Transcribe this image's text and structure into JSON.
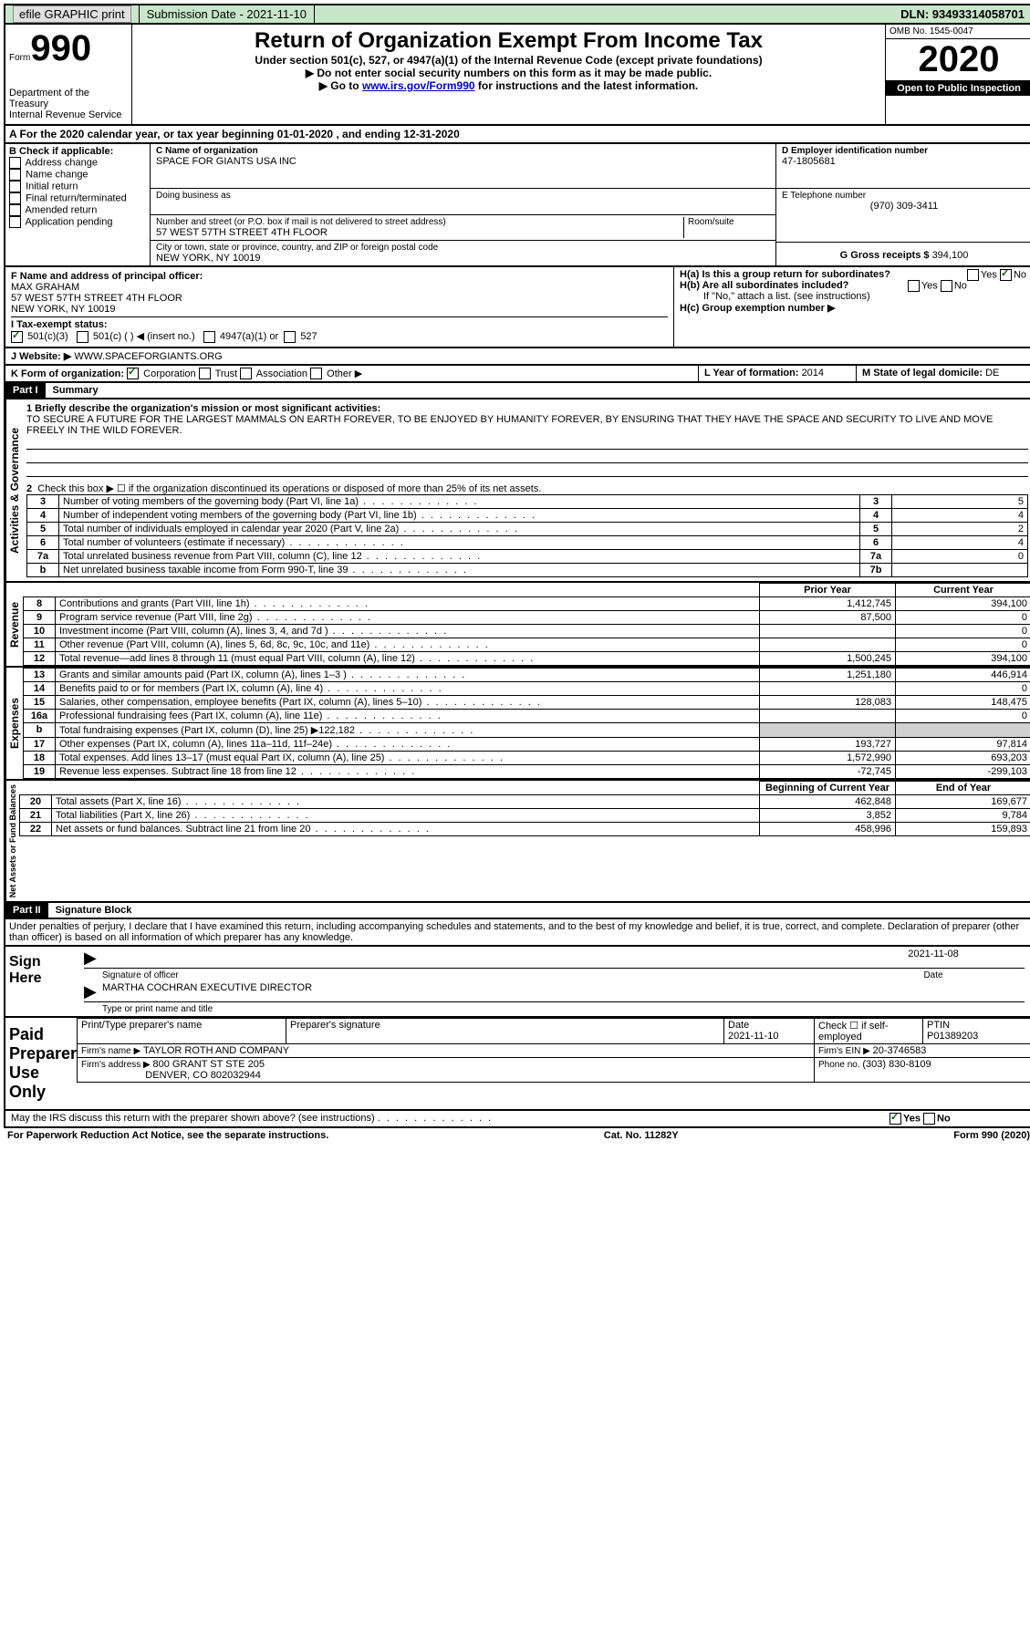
{
  "top": {
    "efile": "efile GRAPHIC print",
    "sub_label": "Submission Date - ",
    "sub_date": "2021-11-10",
    "dln": "DLN: 93493314058701"
  },
  "hdr": {
    "form_prefix": "Form",
    "form_no": "990",
    "dept1": "Department of the Treasury",
    "dept2": "Internal Revenue Service",
    "title": "Return of Organization Exempt From Income Tax",
    "sub1": "Under section 501(c), 527, or 4947(a)(1) of the Internal Revenue Code (except private foundations)",
    "sub2": "▶ Do not enter social security numbers on this form as it may be made public.",
    "sub3a": "▶ Go to ",
    "sub3_link": "www.irs.gov/Form990",
    "sub3b": " for instructions and the latest information.",
    "omb": "OMB No. 1545-0047",
    "year": "2020",
    "inspection": "Open to Public Inspection"
  },
  "a": {
    "line": "A For the 2020 calendar year, or tax year beginning 01-01-2020   , and ending 12-31-2020"
  },
  "b": {
    "label": "B Check if applicable:",
    "c1": "Address change",
    "c2": "Name change",
    "c3": "Initial return",
    "c4": "Final return/terminated",
    "c5": "Amended return",
    "c6": "Application pending"
  },
  "c": {
    "name_label": "C Name of organization",
    "name": "SPACE FOR GIANTS USA INC",
    "dba_label": "Doing business as",
    "addr_label": "Number and street (or P.O. box if mail is not delivered to street address)",
    "room_label": "Room/suite",
    "addr": "57 WEST 57TH STREET 4TH FLOOR",
    "city_label": "City or town, state or province, country, and ZIP or foreign postal code",
    "city": "NEW YORK, NY  10019"
  },
  "d": {
    "label": "D Employer identification number",
    "value": "47-1805681"
  },
  "e": {
    "label": "E Telephone number",
    "value": "(970) 309-3411"
  },
  "g": {
    "label": "G Gross receipts $ ",
    "value": "394,100"
  },
  "f": {
    "label": "F  Name and address of principal officer:",
    "name": "MAX GRAHAM",
    "addr1": "57 WEST 57TH STREET 4TH FLOOR",
    "addr2": "NEW YORK, NY 10019"
  },
  "h": {
    "a": "H(a)  Is this a group return for subordinates?",
    "b": "H(b)  Are all subordinates included?",
    "b_note": "If \"No,\" attach a list. (see instructions)",
    "c": "H(c)  Group exemption number ▶"
  },
  "i": {
    "label": "I  Tax-exempt status:",
    "c1": "501(c)(3)",
    "c2": "501(c) (  ) ◀ (insert no.)",
    "c3": "4947(a)(1) or",
    "c4": "527"
  },
  "j": {
    "label": "J  Website: ▶",
    "value": "WWW.SPACEFORGIANTS.ORG"
  },
  "k": {
    "label": "K Form of organization:",
    "c1": "Corporation",
    "c2": "Trust",
    "c3": "Association",
    "c4": "Other ▶"
  },
  "l": {
    "label": "L Year of formation: ",
    "value": "2014"
  },
  "m": {
    "label": "M State of legal domicile: ",
    "value": "DE"
  },
  "part1": {
    "hdr": "Part I",
    "title": "Summary",
    "l1_label": "1 Briefly describe the organization's mission or most significant activities:",
    "l1_text": "TO SECURE A FUTURE FOR THE LARGEST MAMMALS ON EARTH FOREVER, TO BE ENJOYED BY HUMANITY FOREVER, BY ENSURING THAT THEY HAVE THE SPACE AND SECURITY TO LIVE AND MOVE FREELY IN THE WILD FOREVER.",
    "l2": "Check this box ▶ ☐  if the organization discontinued its operations or disposed of more than 25% of its net assets.",
    "gov_label": "Activities & Governance",
    "rev_label": "Revenue",
    "exp_label": "Expenses",
    "net_label": "Net Assets or Fund Balances",
    "rows_gov": [
      {
        "n": "3",
        "t": "Number of voting members of the governing body (Part VI, line 1a)",
        "b": "3",
        "v": "5"
      },
      {
        "n": "4",
        "t": "Number of independent voting members of the governing body (Part VI, line 1b)",
        "b": "4",
        "v": "4"
      },
      {
        "n": "5",
        "t": "Total number of individuals employed in calendar year 2020 (Part V, line 2a)",
        "b": "5",
        "v": "2"
      },
      {
        "n": "6",
        "t": "Total number of volunteers (estimate if necessary)",
        "b": "6",
        "v": "4"
      },
      {
        "n": "7a",
        "t": "Total unrelated business revenue from Part VIII, column (C), line 12",
        "b": "7a",
        "v": "0"
      },
      {
        "n": "b",
        "t": "Net unrelated business taxable income from Form 990-T, line 39",
        "b": "7b",
        "v": ""
      }
    ],
    "hdr_prior": "Prior Year",
    "hdr_curr": "Current Year",
    "rows_rev": [
      {
        "n": "8",
        "t": "Contributions and grants (Part VIII, line 1h)",
        "p": "1,412,745",
        "c": "394,100"
      },
      {
        "n": "9",
        "t": "Program service revenue (Part VIII, line 2g)",
        "p": "87,500",
        "c": "0"
      },
      {
        "n": "10",
        "t": "Investment income (Part VIII, column (A), lines 3, 4, and 7d )",
        "p": "",
        "c": "0"
      },
      {
        "n": "11",
        "t": "Other revenue (Part VIII, column (A), lines 5, 6d, 8c, 9c, 10c, and 11e)",
        "p": "",
        "c": "0"
      },
      {
        "n": "12",
        "t": "Total revenue—add lines 8 through 11 (must equal Part VIII, column (A), line 12)",
        "p": "1,500,245",
        "c": "394,100"
      }
    ],
    "rows_exp": [
      {
        "n": "13",
        "t": "Grants and similar amounts paid (Part IX, column (A), lines 1–3 )",
        "p": "1,251,180",
        "c": "446,914"
      },
      {
        "n": "14",
        "t": "Benefits paid to or for members (Part IX, column (A), line 4)",
        "p": "",
        "c": "0"
      },
      {
        "n": "15",
        "t": "Salaries, other compensation, employee benefits (Part IX, column (A), lines 5–10)",
        "p": "128,083",
        "c": "148,475"
      },
      {
        "n": "16a",
        "t": "Professional fundraising fees (Part IX, column (A), line 11e)",
        "p": "",
        "c": "0"
      },
      {
        "n": "b",
        "t": "Total fundraising expenses (Part IX, column (D), line 25) ▶122,182",
        "p": "shaded",
        "c": "shaded"
      },
      {
        "n": "17",
        "t": "Other expenses (Part IX, column (A), lines 11a–11d, 11f–24e)",
        "p": "193,727",
        "c": "97,814"
      },
      {
        "n": "18",
        "t": "Total expenses. Add lines 13–17 (must equal Part IX, column (A), line 25)",
        "p": "1,572,990",
        "c": "693,203"
      },
      {
        "n": "19",
        "t": "Revenue less expenses. Subtract line 18 from line 12",
        "p": "-72,745",
        "c": "-299,103"
      }
    ],
    "hdr_begin": "Beginning of Current Year",
    "hdr_end": "End of Year",
    "rows_net": [
      {
        "n": "20",
        "t": "Total assets (Part X, line 16)",
        "p": "462,848",
        "c": "169,677"
      },
      {
        "n": "21",
        "t": "Total liabilities (Part X, line 26)",
        "p": "3,852",
        "c": "9,784"
      },
      {
        "n": "22",
        "t": "Net assets or fund balances. Subtract line 21 from line 20",
        "p": "458,996",
        "c": "159,893"
      }
    ]
  },
  "part2": {
    "hdr": "Part II",
    "title": "Signature Block",
    "decl": "Under penalties of perjury, I declare that I have examined this return, including accompanying schedules and statements, and to the best of my knowledge and belief, it is true, correct, and complete. Declaration of preparer (other than officer) is based on all information of which preparer has any knowledge.",
    "sign_here": "Sign Here",
    "sig_officer": "Signature of officer",
    "sig_date_label": "Date",
    "sig_date": "2021-11-08",
    "officer_name": "MARTHA COCHRAN  EXECUTIVE DIRECTOR",
    "type_name": "Type or print name and title",
    "paid": "Paid Preparer Use Only",
    "prep_name_label": "Print/Type preparer's name",
    "prep_sig_label": "Preparer's signature",
    "prep_date_label": "Date",
    "prep_date": "2021-11-10",
    "check_self": "Check ☐ if self-employed",
    "ptin_label": "PTIN",
    "ptin": "P01389203",
    "firm_name_label": "Firm's name    ▶ ",
    "firm_name": "TAYLOR ROTH AND COMPANY",
    "firm_ein_label": "Firm's EIN ▶ ",
    "firm_ein": "20-3746583",
    "firm_addr_label": "Firm's address ▶ ",
    "firm_addr1": "800 GRANT ST STE 205",
    "firm_addr2": "DENVER, CO  802032944",
    "phone_label": "Phone no. ",
    "phone": "(303) 830-8109",
    "discuss": "May the IRS discuss this return with the preparer shown above? (see instructions)"
  },
  "footer": {
    "paperwork": "For Paperwork Reduction Act Notice, see the separate instructions.",
    "cat": "Cat. No. 11282Y",
    "form": "Form 990 (2020)"
  },
  "labels": {
    "yes": "Yes",
    "no": "No"
  }
}
